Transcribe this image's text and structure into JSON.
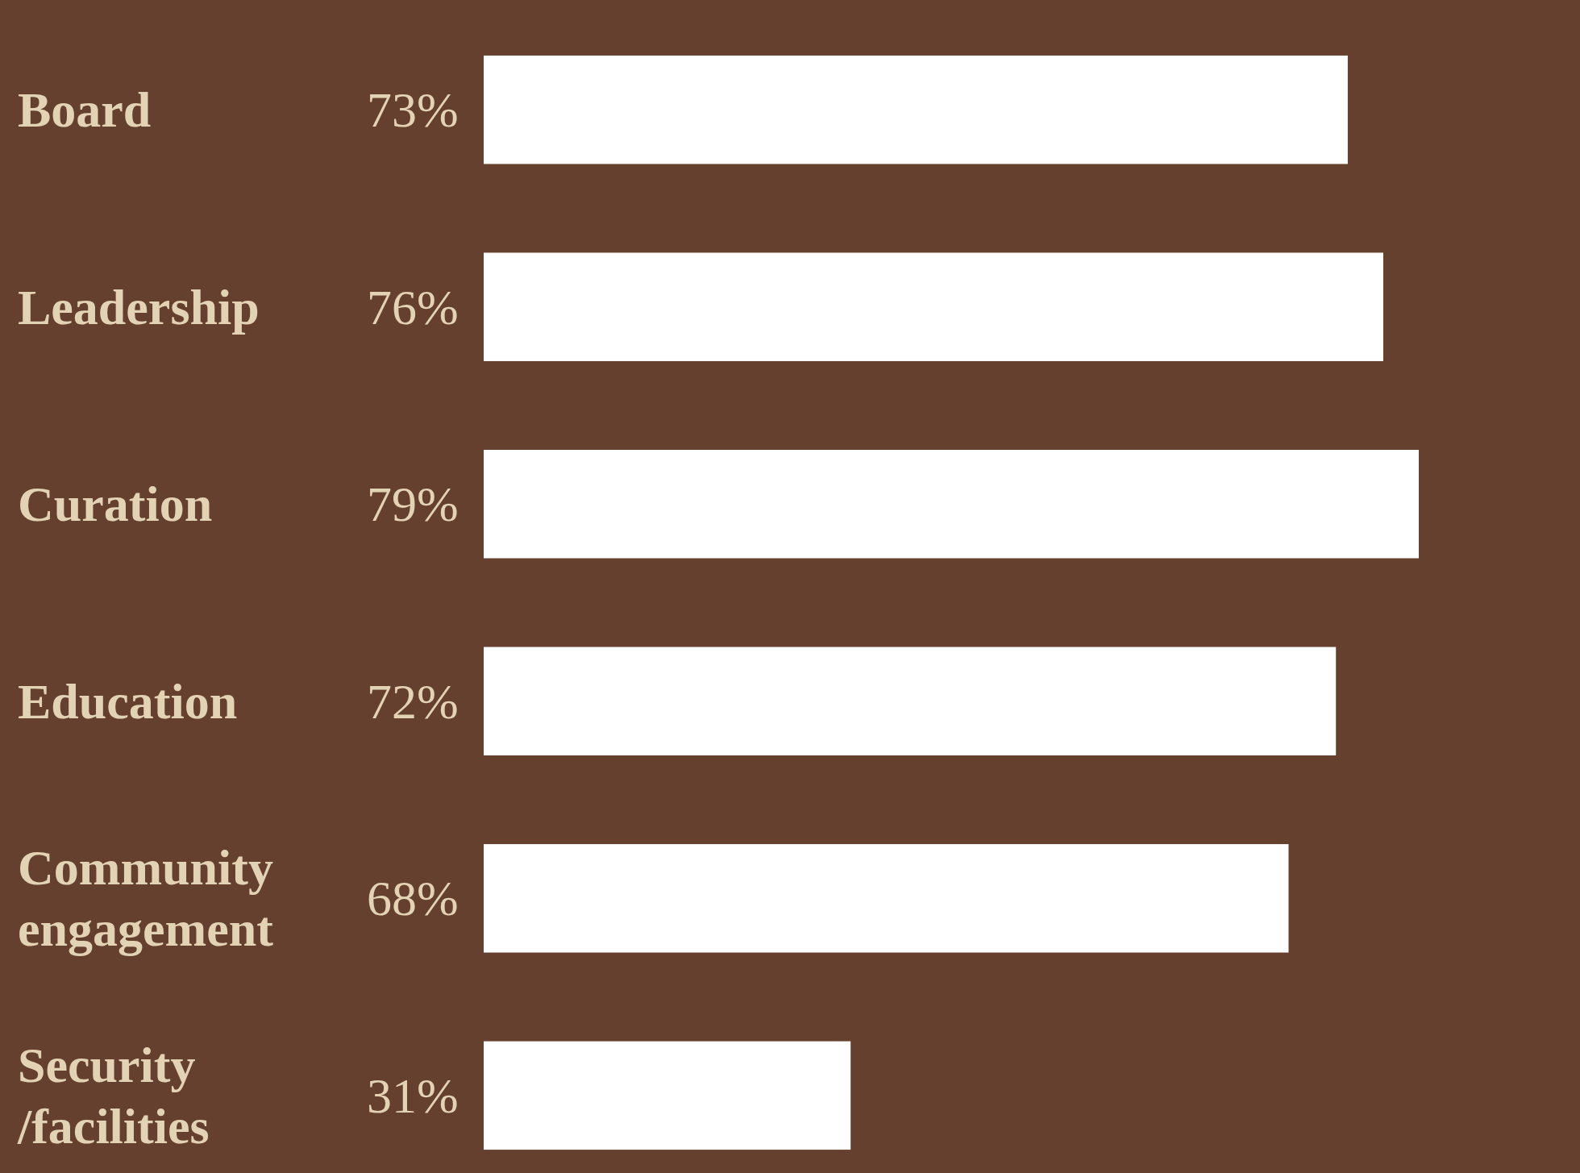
{
  "chart_data": {
    "type": "bar",
    "orientation": "horizontal",
    "categories": [
      "Board",
      "Leadership",
      "Curation",
      "Education",
      "Community engagement",
      "Security /facilities"
    ],
    "values": [
      73,
      76,
      79,
      72,
      68,
      31
    ],
    "color": "#ffffff",
    "value_labels": [
      "73%",
      "76%",
      "79%",
      "72%",
      "68%",
      "31%"
    ]
  }
}
